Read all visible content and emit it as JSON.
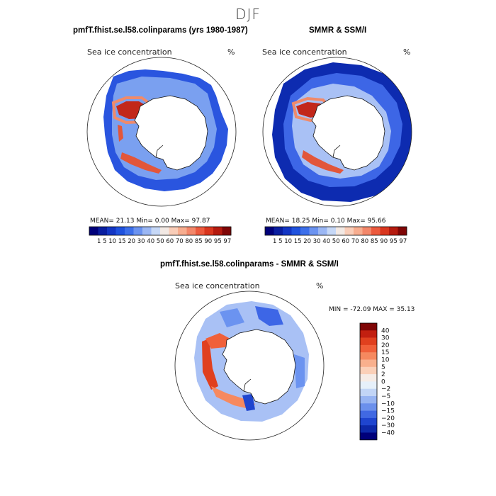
{
  "figure": {
    "season": "DJF"
  },
  "panels": {
    "model": {
      "title": "pmfT.fhist.se.l58.colinparams (yrs 1980-1987)",
      "subtitle": "Sea ice concentration",
      "units": "%",
      "stats": "MEAN=  21.13  Min=    0.00  Max=  97.87"
    },
    "obs": {
      "title": "SMMR & SSM/I",
      "subtitle": "Sea ice concentration",
      "units": "%",
      "stats": "MEAN=  18.25  Min=    0.10  Max=  95.66"
    },
    "diff": {
      "title": "pmfT.fhist.se.l58.colinparams - SMMR & SSM/I",
      "subtitle": "Sea ice concentration",
      "units": "%",
      "stats": "MIN = -72.09 MAX =  35.13"
    }
  },
  "colorbars": {
    "concentration": {
      "tick_text": "1  5  10 15 20 30 40 50 60 70 80 85 90 95 97",
      "levels": [
        1,
        5,
        10,
        15,
        20,
        30,
        40,
        50,
        60,
        70,
        80,
        85,
        90,
        95,
        97
      ],
      "colors": [
        "#00007a",
        "#0a1ea0",
        "#1336c4",
        "#1f52de",
        "#3c6fea",
        "#6b93f0",
        "#9bb7f4",
        "#c6d8f7",
        "#f2e9e4",
        "#f9cdb8",
        "#f7ad8f",
        "#f3876a",
        "#ec5a3e",
        "#d9361e",
        "#b51b0f",
        "#7f0606"
      ]
    },
    "difference": {
      "labels": [
        "40",
        "30",
        "20",
        "15",
        "10",
        "5",
        "2",
        "0",
        "−2",
        "−5",
        "−10",
        "−15",
        "−20",
        "−30",
        "−40"
      ],
      "colors": [
        "#7f0606",
        "#c21f10",
        "#e0401f",
        "#f0603a",
        "#f6895f",
        "#f9b08d",
        "#fbd0b8",
        "#f6ece6",
        "#e6f0fa",
        "#c2d5f6",
        "#97b4f2",
        "#6b90ec",
        "#4169e2",
        "#1f45cf",
        "#0d28a8",
        "#00007a"
      ]
    }
  }
}
